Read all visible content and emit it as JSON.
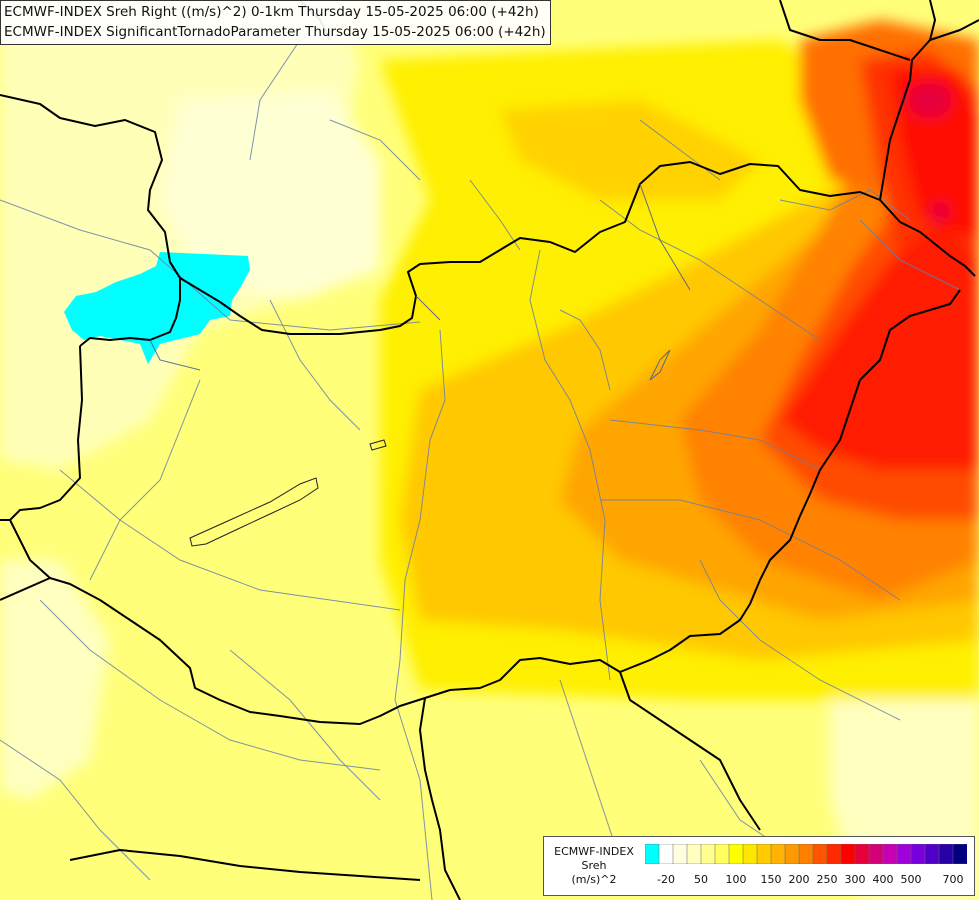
{
  "title": {
    "line1": "ECMWF-INDEX Sreh Right ((m/s)^2) 0-1km Thursday 15-05-2025 06:00 (+42h)",
    "line2": "ECMWF-INDEX SignificantTornadoParameter Thursday 15-05-2025 06:00 (+42h)"
  },
  "legend": {
    "line1": "ECMWF-INDEX",
    "line2": "Sreh",
    "line3": "(m/s)^2",
    "colors": [
      "#00ffff",
      "#ffffff",
      "#ffffe0",
      "#ffffc0",
      "#ffff90",
      "#ffff60",
      "#ffff00",
      "#ffe600",
      "#ffcc00",
      "#ffb300",
      "#ff9900",
      "#ff7f00",
      "#ff5500",
      "#ff2a00",
      "#ff0000",
      "#e6003c",
      "#d4007a",
      "#c800b4",
      "#a000dc",
      "#7800dc",
      "#5000c8",
      "#2800a8",
      "#000080"
    ],
    "ticks": [
      "-20",
      "50",
      "100",
      "150",
      "200",
      "250",
      "300",
      "400",
      "500",
      "700"
    ]
  }
}
